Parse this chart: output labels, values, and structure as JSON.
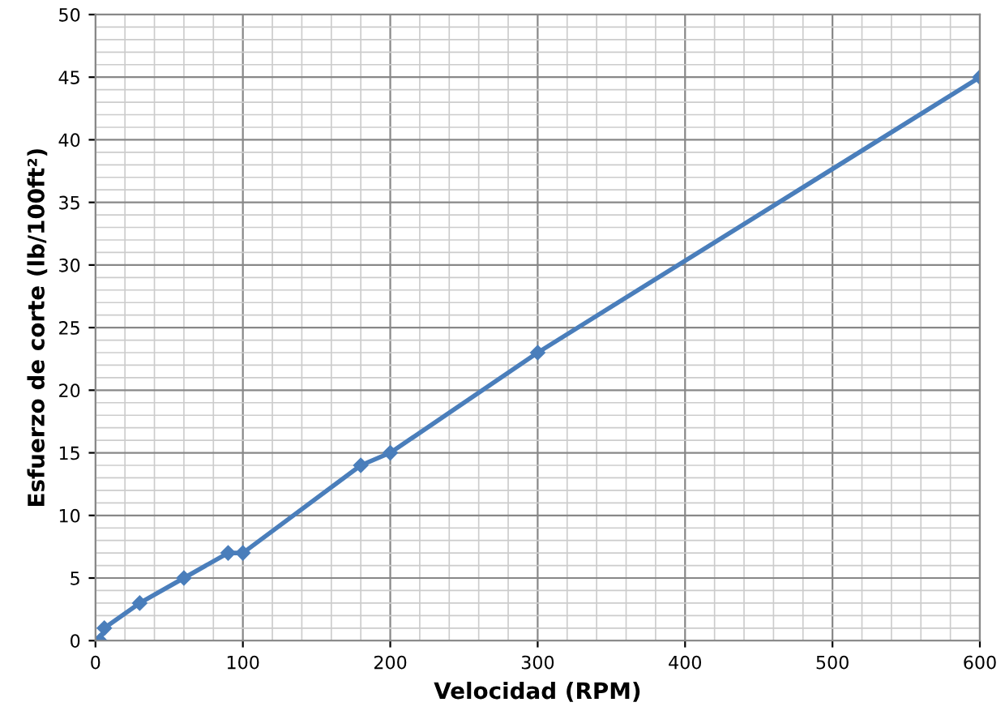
{
  "chart_data": {
    "type": "line",
    "xlabel": "Velocidad (RPM)",
    "ylabel": "Esfuerzo de corte (lb/100ft²)",
    "x": [
      3,
      6,
      30,
      60,
      90,
      100,
      180,
      200,
      300,
      600
    ],
    "series": [
      {
        "color": "#4a7ebb",
        "values": [
          0,
          1,
          3,
          5,
          7,
          7,
          14,
          15,
          23,
          45
        ]
      }
    ],
    "xlim": [
      0,
      600
    ],
    "ylim": [
      0,
      50
    ],
    "xticks": [
      0,
      100,
      200,
      300,
      400,
      500,
      600
    ],
    "yticks": [
      0,
      5,
      10,
      15,
      20,
      25,
      30,
      35,
      40,
      45,
      50
    ],
    "grid": true,
    "marker": "diamond",
    "line_style": "solid"
  }
}
